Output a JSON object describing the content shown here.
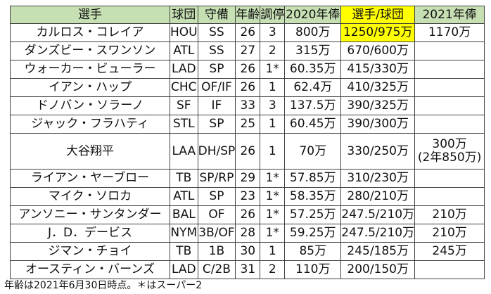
{
  "columns": [
    "選手",
    "球団",
    "守備",
    "年齢",
    "調停",
    "2020年俸",
    "選手/球団",
    "2021年俸"
  ],
  "highlight_color": "#ffff00",
  "header_color": "#c6e0b4",
  "rows": [
    {
      "player": "カルロス・コレイア",
      "team": "HOU",
      "pos": "SS",
      "age": "26",
      "arb": "3",
      "sal2020": "800万",
      "option": "1250/975万",
      "sal2021": "1170万"
    },
    {
      "player": "ダンズビー・スワンソン",
      "team": "ATL",
      "pos": "SS",
      "age": "27",
      "arb": "2",
      "sal2020": "315万",
      "option": "670/600万",
      "sal2021": ""
    },
    {
      "player": "ウォーカー・ビューラー",
      "team": "LAD",
      "pos": "SP",
      "age": "26",
      "arb": "1*",
      "sal2020": "60.35万",
      "option": "415/330万",
      "sal2021": ""
    },
    {
      "player": "イアン・ハップ",
      "team": "CHC",
      "pos": "OF/IF",
      "age": "26",
      "arb": "1",
      "sal2020": "62.4万",
      "option": "410/325万",
      "sal2021": ""
    },
    {
      "player": "ドノバン・ソラーノ",
      "team": "SF",
      "pos": "IF",
      "age": "33",
      "arb": "3",
      "sal2020": "137.5万",
      "option": "390/325万",
      "sal2021": ""
    },
    {
      "player": "ジャック・フラハティ",
      "team": "STL",
      "pos": "SP",
      "age": "25",
      "arb": "1",
      "sal2020": "60.45万",
      "option": "390/300万",
      "sal2021": ""
    },
    {
      "player": "大谷翔平",
      "team": "LAA",
      "pos": "DH/SP",
      "age": "26",
      "arb": "1",
      "sal2020": "70万",
      "option": "330/250万",
      "sal2021": "300万\n(2年850万)"
    },
    {
      "player": "ライアン・ヤーブロー",
      "team": "TB",
      "pos": "SP/RP",
      "age": "29",
      "arb": "1*",
      "sal2020": "57.85万",
      "option": "310/230万",
      "sal2021": ""
    },
    {
      "player": "マイク・ソロカ",
      "team": "ATL",
      "pos": "SP",
      "age": "23",
      "arb": "1*",
      "sal2020": "58.35万",
      "option": "280/210万",
      "sal2021": ""
    },
    {
      "player": "アンソニー・サンタンダー",
      "team": "BAL",
      "pos": "OF",
      "age": "26",
      "arb": "1*",
      "sal2020": "57.25万",
      "option": "247.5/210万",
      "sal2021": "210万"
    },
    {
      "player": "J．D．デービス",
      "team": "NYM",
      "pos": "3B/OF",
      "age": "28",
      "arb": "1*",
      "sal2020": "59.25万",
      "option": "247.5/210万",
      "sal2021": "210万"
    },
    {
      "player": "ジマン・チョイ",
      "team": "TB",
      "pos": "1B",
      "age": "30",
      "arb": "1",
      "sal2020": "85万",
      "option": "245/185万",
      "sal2021": "245万"
    },
    {
      "player": "オースティン・バーンズ",
      "team": "LAD",
      "pos": "C/2B",
      "age": "31",
      "arb": "2",
      "sal2020": "110万",
      "option": "200/150万",
      "sal2021": ""
    }
  ],
  "footnote": "年齢は2021年6月30日時点。＊はスーパー2"
}
